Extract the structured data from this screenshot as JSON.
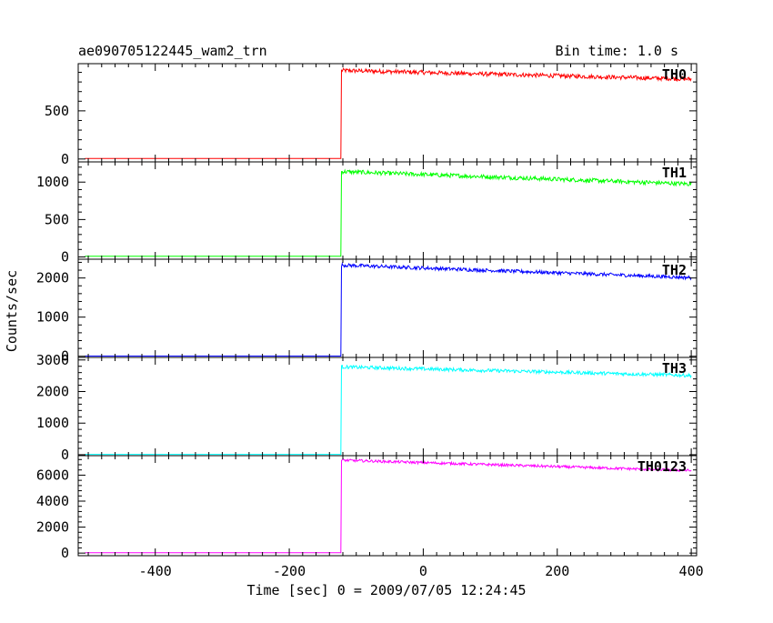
{
  "header": {
    "title": "ae090705122445_wam2_trn",
    "bin_time": "Bin time: 1.0 s"
  },
  "xlabel": "Time [sec] 0 = 2009/07/05 12:24:45",
  "ylabel": "Counts/sec",
  "chart_data": [
    {
      "type": "line",
      "name": "TH0",
      "color": "#ff0000",
      "xlim": [
        -515,
        408
      ],
      "ylim": [
        -30,
        990
      ],
      "yticks": [
        0,
        500
      ],
      "xticks": [
        -400,
        -200,
        0,
        200,
        400
      ],
      "onset_x": -123,
      "pre_level": 5,
      "post_start": 920,
      "post_end": 830,
      "noise": 22
    },
    {
      "type": "line",
      "name": "TH1",
      "color": "#00ff00",
      "xlim": [
        -515,
        408
      ],
      "ylim": [
        -30,
        1270
      ],
      "yticks": [
        0,
        500,
        1000
      ],
      "xticks": [
        -400,
        -200,
        0,
        200,
        400
      ],
      "onset_x": -123,
      "pre_level": 10,
      "post_start": 1140,
      "post_end": 975,
      "noise": 28
    },
    {
      "type": "line",
      "name": "TH2",
      "color": "#0000ff",
      "xlim": [
        -515,
        408
      ],
      "ylim": [
        -30,
        2480
      ],
      "yticks": [
        0,
        1000,
        2000
      ],
      "xticks": [
        -400,
        -200,
        0,
        200,
        400
      ],
      "onset_x": -123,
      "pre_level": 5,
      "post_start": 2330,
      "post_end": 2010,
      "noise": 45
    },
    {
      "type": "line",
      "name": "TH3",
      "color": "#00ffff",
      "xlim": [
        -515,
        408
      ],
      "ylim": [
        -30,
        3080
      ],
      "yticks": [
        0,
        1000,
        2000,
        3000
      ],
      "xticks": [
        -400,
        -200,
        0,
        200,
        400
      ],
      "onset_x": -123,
      "pre_level": 10,
      "post_start": 2780,
      "post_end": 2510,
      "noise": 55
    },
    {
      "type": "line",
      "name": "TH0123",
      "color": "#ff00ff",
      "xlim": [
        -515,
        408
      ],
      "ylim": [
        -200,
        7500
      ],
      "yticks": [
        0,
        2000,
        4000,
        6000
      ],
      "xticks": [
        -400,
        -200,
        0,
        200,
        400
      ],
      "onset_x": -123,
      "pre_level": 30,
      "post_start": 7150,
      "post_end": 6350,
      "noise": 100
    }
  ]
}
